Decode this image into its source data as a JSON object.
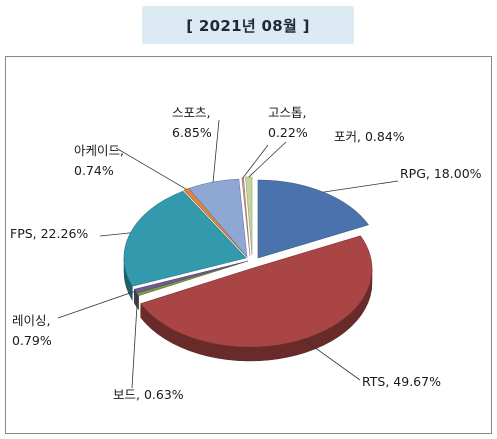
{
  "title": "[ 2021년 08월 ]",
  "chart_data": {
    "type": "pie",
    "title": "[ 2021년 08월 ]",
    "slices": [
      {
        "label": "RPG",
        "value": 18.0,
        "display": "RPG, 18.00%",
        "color": "#4a73ad"
      },
      {
        "label": "RTS",
        "value": 49.67,
        "display": "RTS, 49.67%",
        "color": "#a94544"
      },
      {
        "label": "보드",
        "value": 0.63,
        "display": "보드, 0.63%",
        "color": "#7c9a3f"
      },
      {
        "label": "레이싱",
        "value": 0.79,
        "display": [
          "레이싱,",
          "0.79%"
        ],
        "color": "#6f5a94"
      },
      {
        "label": "FPS",
        "value": 22.26,
        "display": "FPS, 22.26%",
        "color": "#3399ad"
      },
      {
        "label": "아케이드",
        "value": 0.74,
        "display": [
          "아케이드,",
          "0.74%"
        ],
        "color": "#e0843a"
      },
      {
        "label": "스포츠",
        "value": 6.85,
        "display": [
          "스포츠,",
          "6.85%"
        ],
        "color": "#8fa7d3"
      },
      {
        "label": "고스톱",
        "value": 0.22,
        "display": [
          "고스톱,",
          "0.22%"
        ],
        "color": "#d99593"
      },
      {
        "label": "포커",
        "value": 0.84,
        "display": "포커, 0.84%",
        "color": "#c3d69b"
      }
    ]
  }
}
